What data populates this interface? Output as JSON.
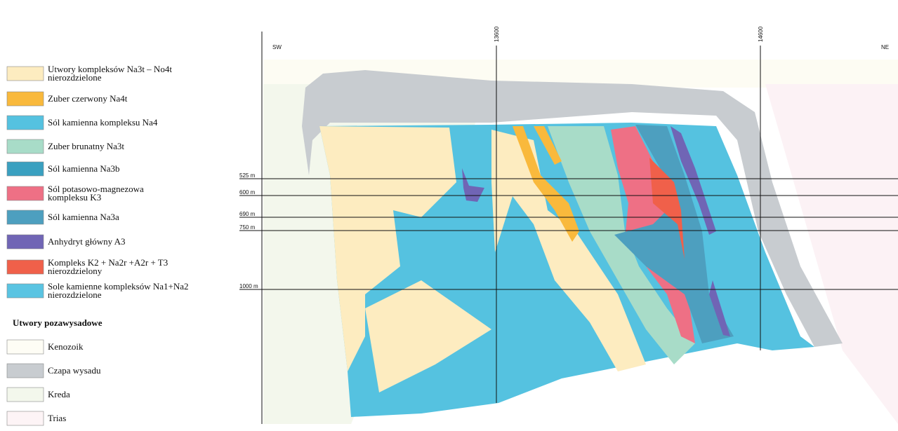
{
  "legend": {
    "items": [
      {
        "lines": [
          "Utwory kompleksów Na3t – No4t",
          "nierozdzielone"
        ],
        "color": "#fdecc0"
      },
      {
        "lines": [
          "Zuber czerwony Na4t"
        ],
        "color": "#f9b93c"
      },
      {
        "lines": [
          "Sól kamienna kompleksu Na4"
        ],
        "color": "#55c2e0"
      },
      {
        "lines": [
          "Zuber brunatny Na3t"
        ],
        "color": "#a8dcc8"
      },
      {
        "lines": [
          "Sól kamienna Na3b"
        ],
        "color": "#3aa0c0"
      },
      {
        "lines": [
          "Sól  potasowo-magnezowa",
          "kompleksu K3"
        ],
        "color": "#ee7085"
      },
      {
        "lines": [
          "Sól kamienna Na3a"
        ],
        "color": "#4d9fbf"
      },
      {
        "lines": [
          "Anhydryt główny A3"
        ],
        "color": "#7065b5"
      },
      {
        "lines": [
          "Kompleks K2 + Na2r +A2r + T3",
          "nierozdzielony"
        ],
        "color": "#f0604a"
      },
      {
        "lines": [
          "Sole kamienne kompleksów Na1+Na2",
          "nierozdzielone"
        ],
        "color": "#5ac4e2"
      }
    ],
    "subheader": "Utwory pozawysadowe",
    "outer_items": [
      {
        "lines": [
          "Kenozoik"
        ],
        "color": "#fefdf5"
      },
      {
        "lines": [
          "Czapa wysadu"
        ],
        "color": "#c8ccd0"
      },
      {
        "lines": [
          "Kreda"
        ],
        "color": "#f3f7ec"
      },
      {
        "lines": [
          "Trias"
        ],
        "color": "#fdf4f6"
      }
    ]
  },
  "section": {
    "left_label": "SW",
    "right_label": "NE",
    "coordinates": [
      "13600",
      "14600"
    ],
    "depths": [
      "525 m",
      "600 m",
      "690 m",
      "750 m",
      "1000 m"
    ]
  }
}
